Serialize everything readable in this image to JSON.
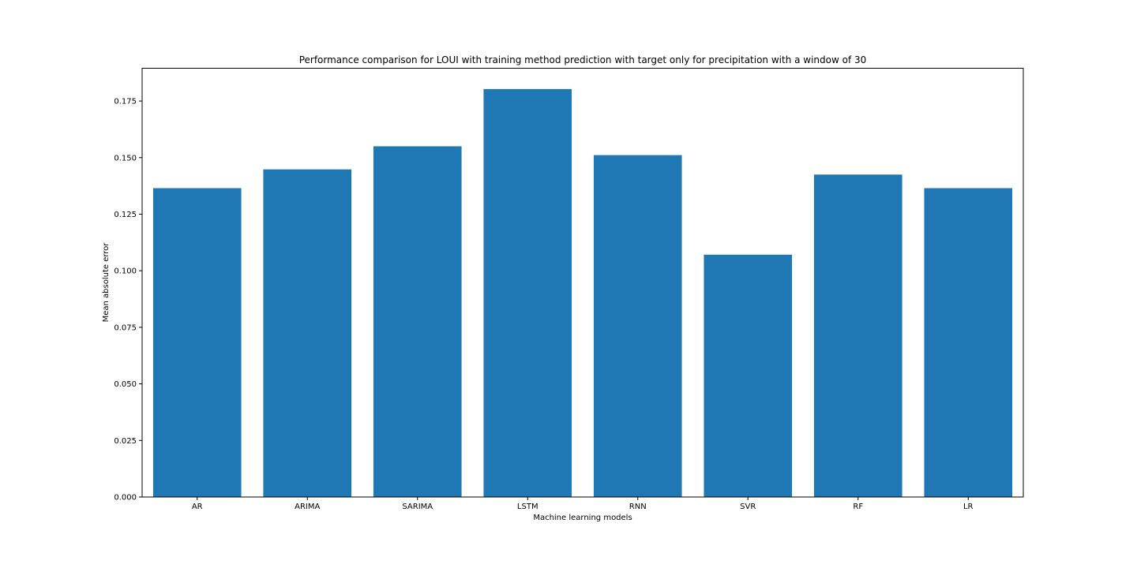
{
  "chart_data": {
    "type": "bar",
    "title": "Performance comparison for LOUI with training method prediction with target only for precipitation with a window of 30",
    "xlabel": "Machine learning models",
    "ylabel": "Mean absolute error",
    "categories": [
      "AR",
      "ARIMA",
      "SARIMA",
      "LSTM",
      "RNN",
      "SVR",
      "RF",
      "LR"
    ],
    "values": [
      0.1365,
      0.1448,
      0.155,
      0.1803,
      0.1511,
      0.1071,
      0.1425,
      0.1365
    ],
    "ylim": [
      0,
      0.1895
    ],
    "yticks": [
      "0.000",
      "0.025",
      "0.050",
      "0.075",
      "0.100",
      "0.125",
      "0.150",
      "0.175"
    ],
    "bar_color": "#1f77b4",
    "grid": false,
    "legend": false
  }
}
